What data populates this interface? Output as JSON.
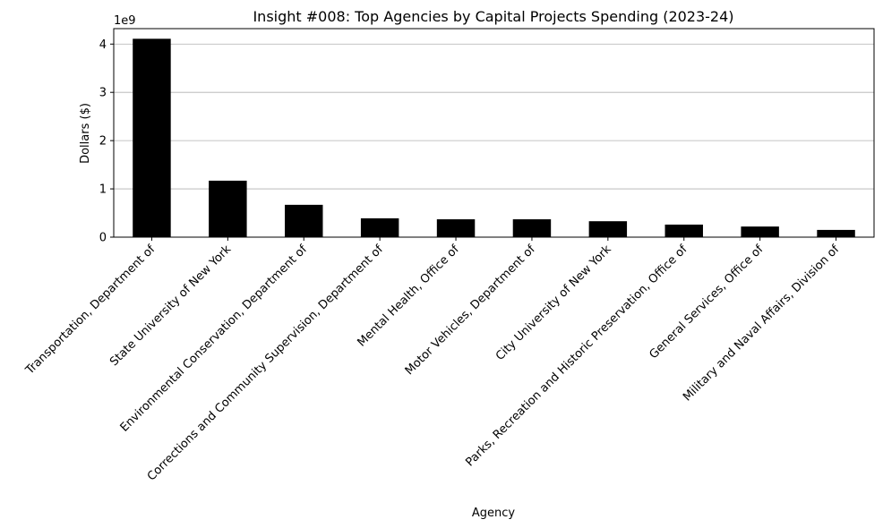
{
  "chart_data": {
    "type": "bar",
    "title": "Insight #008: Top Agencies by Capital Projects Spending (2023-24)",
    "xlabel": "Agency",
    "ylabel": "Dollars ($)",
    "y_offset_label": "1e9",
    "ylim": [
      0,
      4.32
    ],
    "yticks": [
      0,
      1,
      2,
      3,
      4
    ],
    "grid": "y",
    "bar_color": "#000000",
    "grid_color": "#b0b0b0",
    "categories": [
      "Transportation, Department of",
      "State University of New York",
      "Environmental Conservation, Department of",
      "Corrections and Community Supervision, Department of",
      "Mental Health, Office of",
      "Motor Vehicles, Department of",
      "City University of New York",
      "Parks, Recreation and Historic Preservation, Office of",
      "General Services, Office of",
      "Military and Naval Affairs, Division of"
    ],
    "values": [
      4.11,
      1.17,
      0.67,
      0.39,
      0.37,
      0.37,
      0.33,
      0.26,
      0.22,
      0.15
    ]
  }
}
